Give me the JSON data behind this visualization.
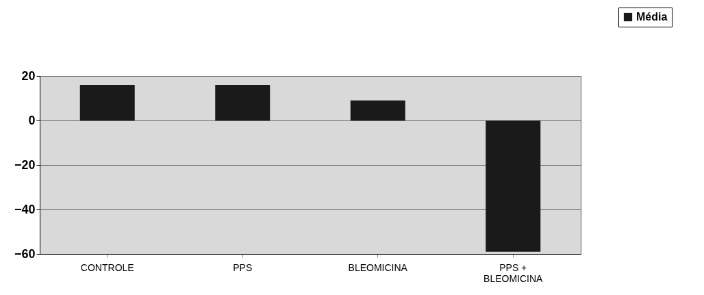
{
  "chart_data": {
    "type": "bar",
    "categories": [
      "CONTROLE",
      "PPS",
      "BLEOMICINA",
      "PPS + BLEOMICINA"
    ],
    "series": [
      {
        "name": "Média",
        "color": "#1a1a1a",
        "values": [
          16,
          16,
          9,
          -59
        ]
      }
    ],
    "ylim": [
      -60,
      20
    ],
    "yticks": [
      -60,
      -40,
      -20,
      0,
      20
    ],
    "grid": "y",
    "legend": "top right"
  }
}
